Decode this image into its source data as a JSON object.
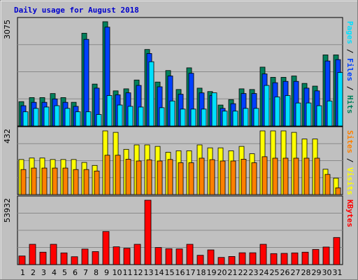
{
  "chart_data": {
    "type": "bar",
    "title": "Daily usage for August 2018",
    "categories": [
      "1",
      "2",
      "3",
      "4",
      "5",
      "6",
      "7",
      "8",
      "9",
      "10",
      "11",
      "12",
      "13",
      "14",
      "15",
      "16",
      "17",
      "18",
      "19",
      "20",
      "21",
      "22",
      "23",
      "24",
      "25",
      "26",
      "27",
      "28",
      "29",
      "30",
      "31"
    ],
    "weekend_days": [
      "4",
      "5",
      "11",
      "12",
      "18",
      "19",
      "25",
      "26"
    ],
    "colors": {
      "hits": "#00805c",
      "files": "#0040ff",
      "pages": "#00e0ff",
      "visits": "#ffff00",
      "sites": "#ff8000",
      "kbytes": "#ff0000",
      "weekday_label": "#000000",
      "weekend_label": "#00805c",
      "panel_bg": "#c0c0c0",
      "title": "#0000cc"
    },
    "panels": [
      {
        "id": "hits-files-pages",
        "axis_max_label": "3075",
        "ylim": [
          0,
          3075
        ],
        "side_legend": [
          {
            "text": "Pages",
            "color": "#00e0ff"
          },
          {
            "text": " / ",
            "color": "#000000"
          },
          {
            "text": "Files",
            "color": "#0040ff"
          },
          {
            "text": " / ",
            "color": "#000000"
          },
          {
            "text": "Hits",
            "color": "#00805c"
          }
        ],
        "series": [
          {
            "name": "Hits",
            "color": "#00805c",
            "values": [
              718,
              838,
              838,
              957,
              838,
              699,
              2735,
              1236,
              3075,
              1036,
              1096,
              1356,
              2256,
              1296,
              1635,
              1076,
              1715,
              1116,
              1016,
              618,
              778,
              1096,
              1076,
              1735,
              1435,
              1435,
              1475,
              1256,
              1176,
              2097,
              2097
            ]
          },
          {
            "name": "Files",
            "color": "#0040ff",
            "values": [
              598,
              698,
              698,
              798,
              698,
              579,
              2555,
              1116,
              2915,
              918,
              978,
              1196,
              2137,
              1156,
              1475,
              936,
              1555,
              976,
              898,
              519,
              658,
              958,
              958,
              1535,
              1276,
              1316,
              1316,
              1116,
              1036,
              1917,
              1957
            ]
          },
          {
            "name": "Pages",
            "color": "#00e0ff",
            "values": [
              419,
              519,
              559,
              599,
              519,
              419,
              419,
              339,
              898,
              619,
              579,
              559,
              1895,
              539,
              738,
              499,
              499,
              499,
              978,
              439,
              439,
              519,
              519,
              1196,
              858,
              898,
              678,
              679,
              598,
              738,
              1576
            ]
          }
        ]
      },
      {
        "id": "visits-sites",
        "axis_max_label": "432",
        "ylim": [
          0,
          432
        ],
        "side_legend": [
          {
            "text": "Sites",
            "color": "#ff8000"
          },
          {
            "text": " / ",
            "color": "#000000"
          },
          {
            "text": "Visits",
            "color": "#ffff00"
          }
        ],
        "series": [
          {
            "name": "Visits",
            "color": "#ffff00",
            "values": [
              238,
              248,
              248,
              238,
              238,
              238,
              218,
              198,
              432,
              422,
              307,
              337,
              337,
              327,
              287,
              297,
              297,
              337,
              317,
              317,
              297,
              327,
              277,
              432,
              432,
              432,
              422,
              377,
              377,
              172,
              112
            ]
          },
          {
            "name": "Sites",
            "color": "#ff8000",
            "values": [
              170,
              180,
              180,
              180,
              180,
              170,
              170,
              160,
              267,
              267,
              240,
              228,
              236,
              228,
              238,
              216,
              216,
              247,
              237,
              228,
              228,
              240,
              216,
              257,
              247,
              247,
              247,
              247,
              247,
              137,
              46
            ]
          }
        ]
      },
      {
        "id": "kbytes",
        "axis_max_label": "53932",
        "ylim": [
          0,
          53932
        ],
        "side_legend": [
          {
            "text": "KBytes",
            "color": "#ff0000"
          }
        ],
        "series": [
          {
            "name": "KBytes",
            "color": "#ff0000",
            "values": [
              7200,
              17000,
              10400,
              17000,
              9800,
              6600,
              13000,
              10900,
              27700,
              14900,
              13700,
              17000,
              53932,
              14300,
              13300,
              13100,
              17000,
              7800,
              12300,
              6000,
              6800,
              9900,
              9900,
              17000,
              9200,
              9400,
              9800,
              10400,
              12700,
              14700,
              22700
            ]
          }
        ]
      }
    ]
  }
}
